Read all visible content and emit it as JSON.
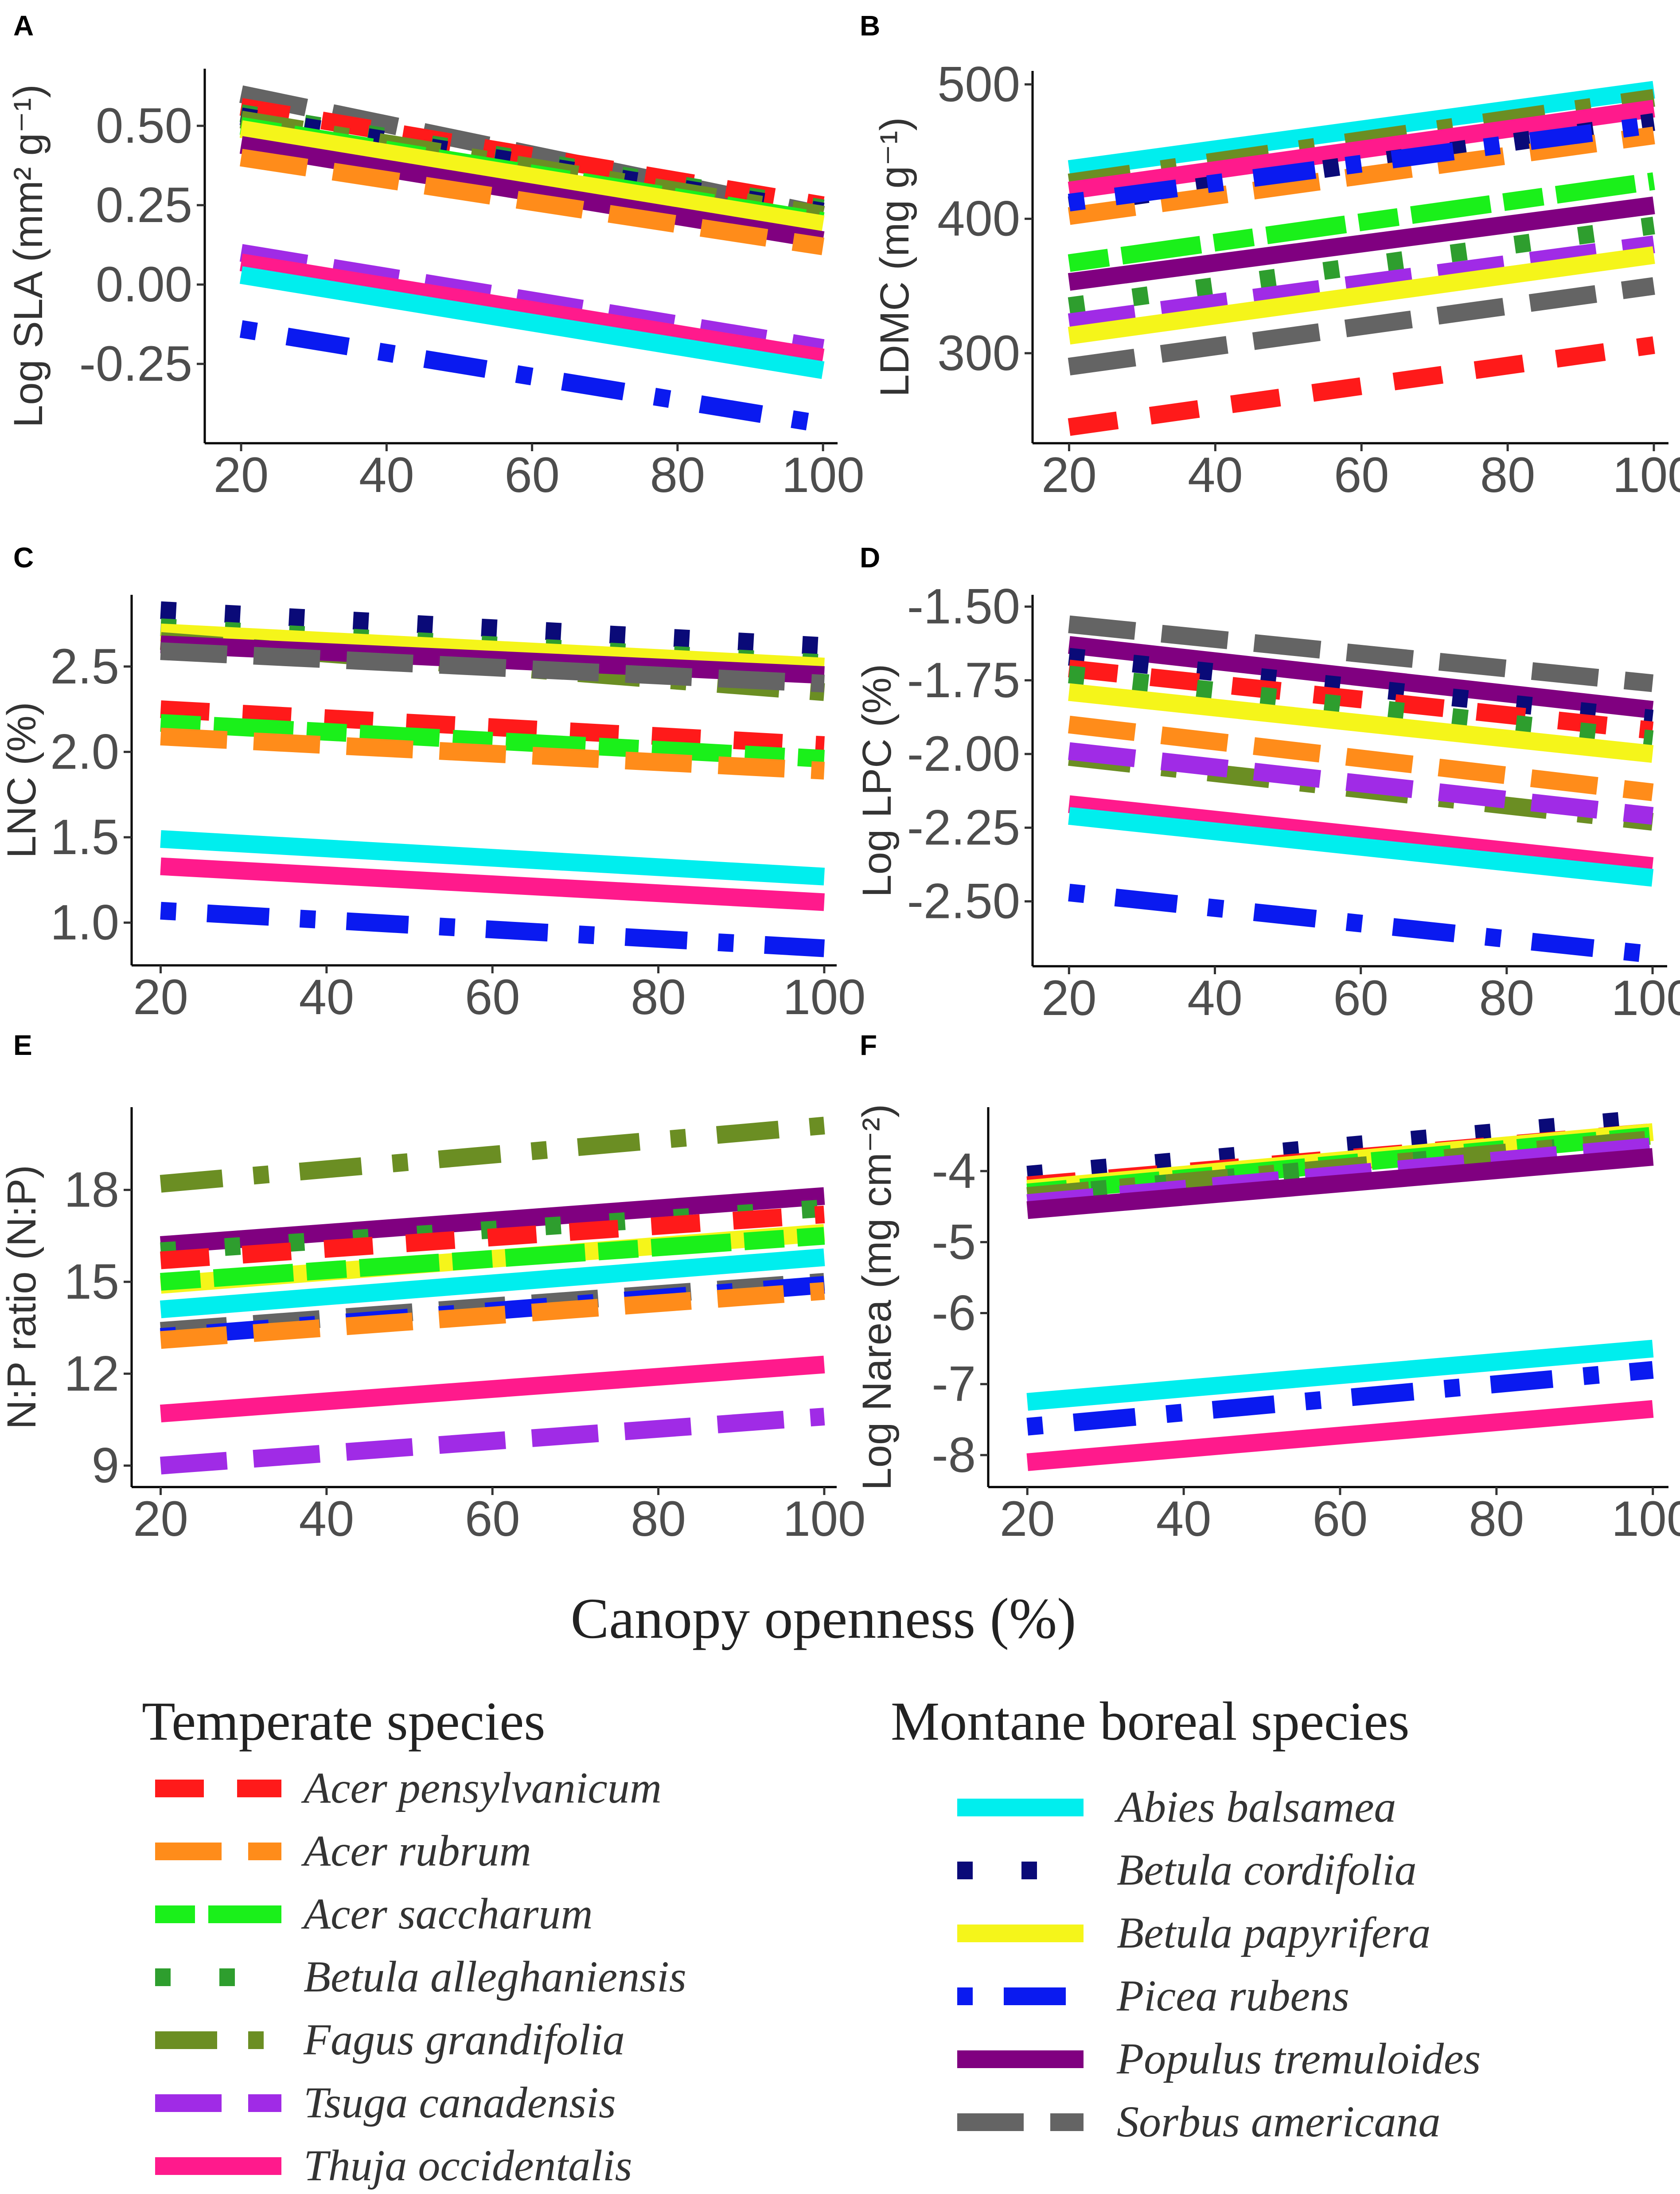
{
  "x_axis_title": "Canopy openness (%)",
  "legend": {
    "temperate_title": "Temperate species",
    "boreal_title": "Montane boreal species"
  },
  "species": {
    "acpe": {
      "name": "Acer pensylvanicum",
      "color": "#FF1A1A",
      "dash": "dash",
      "group": "temperate"
    },
    "acru": {
      "name": "Acer rubrum",
      "color": "#FF8C1A",
      "dash": "longdash",
      "group": "temperate"
    },
    "acsa": {
      "name": "Acer saccharum",
      "color": "#1AF01A",
      "dash": "twodash",
      "group": "temperate"
    },
    "beal": {
      "name": "Betula alleghaniensis",
      "color": "#2E9E2E",
      "dash": "dotted",
      "group": "temperate"
    },
    "fagr": {
      "name": "Fagus grandifolia",
      "color": "#6B8E23",
      "dash": "dashdot",
      "group": "temperate"
    },
    "tsca": {
      "name": "Tsuga canadensis",
      "color": "#A02BE6",
      "dash": "longdash",
      "group": "temperate"
    },
    "thoc": {
      "name": "Thuja occidentalis",
      "color": "#FF1A8C",
      "dash": "solid",
      "group": "temperate"
    },
    "abba": {
      "name": "Abies balsamea",
      "color": "#00EEEE",
      "dash": "solid",
      "group": "boreal"
    },
    "beco": {
      "name": "Betula cordifolia",
      "color": "#0A0A78",
      "dash": "dotted",
      "group": "boreal"
    },
    "bepa": {
      "name": "Betula papyrifera",
      "color": "#F5F51A",
      "dash": "solid",
      "group": "boreal"
    },
    "piru": {
      "name": "Picea rubens",
      "color": "#0A1AF0",
      "dash": "dotdash",
      "group": "boreal"
    },
    "potr": {
      "name": "Populus tremuloides",
      "color": "#800080",
      "dash": "solid",
      "group": "boreal"
    },
    "soam": {
      "name": "Sorbus americana",
      "color": "#646464",
      "dash": "longdash",
      "group": "boreal"
    }
  },
  "temperate_order": [
    "acpe",
    "acru",
    "acsa",
    "beal",
    "fagr",
    "tsca",
    "thoc"
  ],
  "boreal_order": [
    "abba",
    "beco",
    "bepa",
    "piru",
    "potr",
    "soam"
  ],
  "chart_data": [
    {
      "panel": "A",
      "type": "line",
      "ylabel": "Log SLA (mm² g⁻¹)",
      "xlim": [
        15,
        102
      ],
      "ylim": [
        -0.5,
        0.68
      ],
      "xticks": [
        "20",
        "40",
        "60",
        "80",
        "100"
      ],
      "yticks": [
        "-0.25",
        "0.00",
        "0.25",
        "0.50"
      ],
      "ytick_values": [
        -0.25,
        0,
        0.25,
        0.5
      ],
      "series": {
        "soam": [
          0.6,
          0.22
        ],
        "acpe": [
          0.56,
          0.25
        ],
        "beal": [
          0.54,
          0.24
        ],
        "beco": [
          0.53,
          0.23
        ],
        "fagr": [
          0.52,
          0.22
        ],
        "acsa": [
          0.5,
          0.2
        ],
        "bepa": [
          0.49,
          0.19
        ],
        "potr": [
          0.44,
          0.14
        ],
        "acru": [
          0.4,
          0.12
        ],
        "tsca": [
          0.1,
          -0.2
        ],
        "thoc": [
          0.07,
          -0.23
        ],
        "abba": [
          0.03,
          -0.27
        ],
        "piru": [
          -0.14,
          -0.44
        ]
      }
    },
    {
      "panel": "B",
      "type": "line",
      "ylabel": "LDMC (mg g⁻¹)",
      "xlim": [
        15,
        102
      ],
      "ylim": [
        233,
        510
      ],
      "xticks": [
        "20",
        "40",
        "60",
        "80",
        "100"
      ],
      "yticks": [
        "300",
        "400",
        "500"
      ],
      "ytick_values": [
        300,
        400,
        500
      ],
      "series": {
        "abba": [
          437,
          496
        ],
        "fagr": [
          427,
          490
        ],
        "thoc": [
          421,
          482
        ],
        "beco": [
          410,
          472
        ],
        "acru": [
          402,
          462
        ],
        "acsa": [
          367,
          428
        ],
        "potr": [
          353,
          410
        ],
        "beal": [
          335,
          395
        ],
        "tsca": [
          323,
          381
        ],
        "bepa": [
          313,
          373
        ],
        "soam": [
          290,
          350
        ],
        "acpe": [
          245,
          306
        ],
        "piru": [
          412,
          470
        ]
      }
    },
    {
      "panel": "C",
      "type": "line",
      "ylabel": "LNC (%)",
      "xlim": [
        16.5,
        101.5
      ],
      "ylim": [
        0.75,
        2.92
      ],
      "xticks": [
        "20",
        "40",
        "60",
        "80",
        "100"
      ],
      "yticks": [
        "1.0",
        "1.5",
        "2.0",
        "2.5"
      ],
      "ytick_values": [
        1.0,
        1.5,
        2.0,
        2.5
      ],
      "series": {
        "beco": [
          2.83,
          2.62
        ],
        "beal": [
          2.73,
          2.52
        ],
        "bepa": [
          2.7,
          2.5
        ],
        "fagr": [
          2.65,
          2.35
        ],
        "potr": [
          2.63,
          2.45
        ],
        "soam": [
          2.59,
          2.4
        ],
        "acpe": [
          2.25,
          2.04
        ],
        "acsa": [
          2.17,
          1.96
        ],
        "acru": [
          2.09,
          1.89
        ],
        "abba": [
          1.49,
          1.27
        ],
        "thoc": [
          1.33,
          1.12
        ],
        "piru": [
          1.07,
          0.85
        ]
      }
    },
    {
      "panel": "D",
      "type": "line",
      "ylabel": "Log LPC (%)",
      "xlim": [
        15,
        102
      ],
      "ylim": [
        -2.72,
        -1.46
      ],
      "xticks": [
        "20",
        "40",
        "60",
        "80",
        "100"
      ],
      "yticks": [
        "-2.50",
        "-2.25",
        "-2.00",
        "-1.75",
        "-1.50"
      ],
      "ytick_values": [
        -2.5,
        -2.25,
        -2.0,
        -1.75,
        -1.5
      ],
      "series": {
        "soam": [
          -1.56,
          -1.76
        ],
        "potr": [
          -1.63,
          -1.85
        ],
        "beco": [
          -1.67,
          -1.88
        ],
        "acpe": [
          -1.71,
          -1.92
        ],
        "beal": [
          -1.73,
          -1.95
        ],
        "bepa": [
          -1.79,
          -2.0
        ],
        "acru": [
          -1.9,
          -2.13
        ],
        "fagr": [
          -2.01,
          -2.23
        ],
        "tsca": [
          -1.99,
          -2.21
        ],
        "thoc": [
          -2.17,
          -2.38
        ],
        "abba": [
          -2.21,
          -2.42
        ],
        "piru": [
          -2.47,
          -2.68
        ]
      }
    },
    {
      "panel": "E",
      "type": "line",
      "ylabel": "N:P ratio (N:P)",
      "xlim": [
        16.5,
        101.5
      ],
      "ylim": [
        8.3,
        20.7
      ],
      "xticks": [
        "20",
        "40",
        "60",
        "80",
        "100"
      ],
      "yticks": [
        "9",
        "12",
        "15",
        "18"
      ],
      "ytick_values": [
        9,
        12,
        15,
        18
      ],
      "series": {
        "fagr": [
          18.2,
          20.1
        ],
        "potr": [
          16.2,
          17.8
        ],
        "beal": [
          16.0,
          17.4
        ],
        "acpe": [
          15.7,
          17.2
        ],
        "bepa": [
          14.9,
          16.6
        ],
        "acsa": [
          15.0,
          16.5
        ],
        "abba": [
          14.1,
          15.8
        ],
        "soam": [
          13.4,
          15.0
        ],
        "piru": [
          13.2,
          14.9
        ],
        "acru": [
          13.1,
          14.7
        ],
        "thoc": [
          10.7,
          12.3
        ],
        "tsca": [
          9.0,
          10.6
        ]
      }
    },
    {
      "panel": "F",
      "type": "line",
      "ylabel": "Log Narea (mg cm⁻²)",
      "xlim": [
        15,
        102
      ],
      "ylim": [
        -8.45,
        -3.1
      ],
      "xticks": [
        "20",
        "40",
        "60",
        "80",
        "100"
      ],
      "yticks": [
        "-8",
        "-7",
        "-6",
        "-5",
        "-4"
      ],
      "ytick_values": [
        -8,
        -7,
        -6,
        -5,
        -4
      ],
      "series": {
        "beco": [
          -4.05,
          -3.25
        ],
        "acpe": [
          -4.2,
          -3.45
        ],
        "acru": [
          -4.25,
          -3.5
        ],
        "bepa": [
          -4.25,
          -3.45
        ],
        "acsa": [
          -4.3,
          -3.5
        ],
        "beal": [
          -4.35,
          -3.55
        ],
        "fagr": [
          -4.35,
          -3.55
        ],
        "tsca": [
          -4.45,
          -3.65
        ],
        "potr": [
          -4.55,
          -3.8
        ],
        "abba": [
          -7.25,
          -6.5
        ],
        "piru": [
          -7.6,
          -6.8
        ],
        "thoc": [
          -8.1,
          -7.35
        ]
      }
    }
  ]
}
